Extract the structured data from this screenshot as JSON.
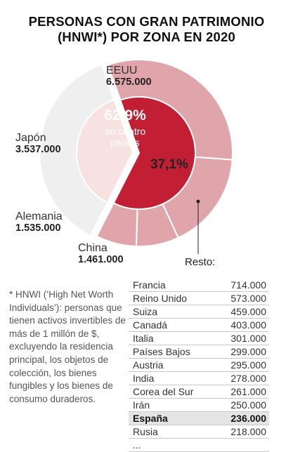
{
  "title": {
    "line1": "PERSONAS CON GRAN PATRIMONIO",
    "line2": "(HNWI*) POR ZONA EN 2020"
  },
  "chart_data": {
    "type": "pie",
    "title": "PERSONAS CON GRAN PATRIMONIO (HNWI*) POR ZONA EN 2020",
    "outer_ring": [
      {
        "name": "EEUU",
        "value": 6575000,
        "label": "6.575.000",
        "color": "#e0a4ab"
      },
      {
        "name": "Japón",
        "value": 3537000,
        "label": "3.537.000",
        "color": "#e0a4ab"
      },
      {
        "name": "Alemania",
        "value": 1535000,
        "label": "1.535.000",
        "color": "#e0a4ab"
      },
      {
        "name": "China",
        "value": 1461000,
        "label": "1.461.000",
        "color": "#e0a4ab"
      },
      {
        "name": "Resto",
        "value": 7700000,
        "label": "",
        "color": "#efefef"
      }
    ],
    "inner_ring": [
      {
        "name": "en cuatro países",
        "value": 62.9,
        "label": "62,9%",
        "color": "#c21f34"
      },
      {
        "name": "Resto",
        "value": 37.1,
        "label": "37,1%",
        "color": "#f7e1e1"
      }
    ],
    "rest_label": "Resto:",
    "rest_table": [
      {
        "name": "Francia",
        "value": "714.000"
      },
      {
        "name": "Reino Unido",
        "value": "573.000"
      },
      {
        "name": "Suiza",
        "value": "459.000"
      },
      {
        "name": "Canadá",
        "value": "403.000"
      },
      {
        "name": "Italia",
        "value": "301.000"
      },
      {
        "name": "Países Bajos",
        "value": "299.000"
      },
      {
        "name": "Austria",
        "value": "295.000"
      },
      {
        "name": "India",
        "value": "278.000"
      },
      {
        "name": "Corea del Sur",
        "value": "261.000"
      },
      {
        "name": "Irán",
        "value": "250.000"
      },
      {
        "name": "España",
        "value": "236.000",
        "highlight": true
      },
      {
        "name": "Rusia",
        "value": "218.000"
      },
      {
        "name": "...",
        "value": ""
      }
    ]
  },
  "center": {
    "pct": "62,9%",
    "sub1": "en cuatro",
    "sub2": "países"
  },
  "footnote": "* HNWI (‘High Net Worth Individuals’): personas que tienen activos invertibles de más de 1 millón de $, excluyendo la residencia principal, los objetos de colección, los bienes fungibles y los bienes de consumo duraderos."
}
